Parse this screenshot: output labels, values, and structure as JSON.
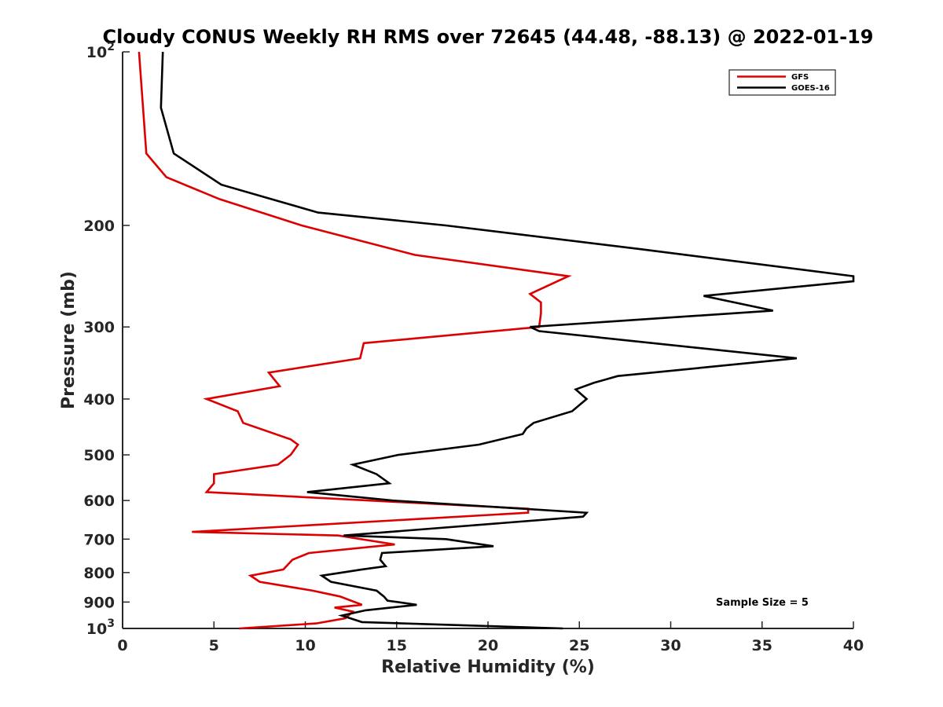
{
  "chart_data": {
    "type": "line",
    "title": "Cloudy CONUS Weekly RH RMS over 72645 (44.48, -88.13) @ 2022-01-19",
    "xlabel": "Relative Humidity (%)",
    "ylabel": "Pressure (mb)",
    "xlim": [
      0,
      40
    ],
    "ylim": [
      100,
      1000
    ],
    "y_scale": "log",
    "y_reversed": true,
    "grid": false,
    "x_ticks": [
      0,
      5,
      10,
      15,
      20,
      25,
      30,
      35,
      40
    ],
    "y_ticks": [
      100,
      200,
      300,
      400,
      500,
      600,
      700,
      800,
      900,
      1000
    ],
    "y_tick_labels": [
      {
        "base": "10",
        "exp": "2"
      },
      {
        "text": "200"
      },
      {
        "text": "300"
      },
      {
        "text": "400"
      },
      {
        "text": "500"
      },
      {
        "text": "600"
      },
      {
        "text": "700"
      },
      {
        "text": "800"
      },
      {
        "text": "900"
      },
      {
        "base": "10",
        "exp": "3"
      }
    ],
    "legend_position": "top-right",
    "annotation": "Sample Size = 5",
    "series": [
      {
        "name": "GFS",
        "color": "#dd0000",
        "points": [
          [
            0.9,
            100
          ],
          [
            1.3,
            150
          ],
          [
            2.4,
            165
          ],
          [
            5.3,
            180
          ],
          [
            9.8,
            200
          ],
          [
            16.0,
            225
          ],
          [
            24.4,
            245
          ],
          [
            22.3,
            263
          ],
          [
            22.9,
            272
          ],
          [
            22.9,
            284
          ],
          [
            22.8,
            300
          ],
          [
            13.2,
            320
          ],
          [
            13.0,
            340
          ],
          [
            8.0,
            360
          ],
          [
            8.6,
            380
          ],
          [
            4.6,
            400
          ],
          [
            6.3,
            420
          ],
          [
            6.6,
            440
          ],
          [
            9.2,
            470
          ],
          [
            9.6,
            480
          ],
          [
            9.2,
            500
          ],
          [
            8.5,
            520
          ],
          [
            5.0,
            540
          ],
          [
            5.0,
            560
          ],
          [
            4.6,
            580
          ],
          [
            22.2,
            620
          ],
          [
            22.2,
            630
          ],
          [
            3.8,
            680
          ],
          [
            11.8,
            690
          ],
          [
            14.9,
            715
          ],
          [
            10.2,
            740
          ],
          [
            9.3,
            760
          ],
          [
            8.8,
            790
          ],
          [
            7.0,
            810
          ],
          [
            7.5,
            830
          ],
          [
            10.4,
            860
          ],
          [
            11.9,
            880
          ],
          [
            13.1,
            910
          ],
          [
            11.6,
            920
          ],
          [
            12.6,
            935
          ],
          [
            12.2,
            960
          ],
          [
            10.6,
            980
          ],
          [
            6.4,
            1000
          ]
        ]
      },
      {
        "name": "GOES-16",
        "color": "#000000",
        "points": [
          [
            2.2,
            100
          ],
          [
            2.1,
            125
          ],
          [
            2.8,
            150
          ],
          [
            5.4,
            170
          ],
          [
            10.7,
            190
          ],
          [
            17.7,
            200
          ],
          [
            28.4,
            220
          ],
          [
            40.0,
            245
          ],
          [
            40.0,
            250
          ],
          [
            31.8,
            265
          ],
          [
            35.6,
            281
          ],
          [
            22.3,
            300
          ],
          [
            22.8,
            305
          ],
          [
            36.9,
            340
          ],
          [
            27.1,
            365
          ],
          [
            25.8,
            375
          ],
          [
            24.8,
            385
          ],
          [
            25.4,
            400
          ],
          [
            24.6,
            420
          ],
          [
            22.5,
            440
          ],
          [
            22.1,
            450
          ],
          [
            21.9,
            460
          ],
          [
            19.5,
            480
          ],
          [
            15.1,
            500
          ],
          [
            12.6,
            520
          ],
          [
            13.9,
            540
          ],
          [
            14.6,
            560
          ],
          [
            10.1,
            580
          ],
          [
            14.8,
            600
          ],
          [
            25.4,
            630
          ],
          [
            25.2,
            640
          ],
          [
            12.1,
            690
          ],
          [
            17.7,
            700
          ],
          [
            20.3,
            720
          ],
          [
            14.2,
            740
          ],
          [
            14.1,
            760
          ],
          [
            14.4,
            780
          ],
          [
            13.1,
            790
          ],
          [
            10.9,
            810
          ],
          [
            11.4,
            830
          ],
          [
            13.9,
            860
          ],
          [
            14.3,
            880
          ],
          [
            14.5,
            895
          ],
          [
            16.1,
            910
          ],
          [
            13.3,
            930
          ],
          [
            12.0,
            950
          ],
          [
            13.1,
            975
          ],
          [
            24.1,
            1000
          ]
        ]
      }
    ]
  }
}
